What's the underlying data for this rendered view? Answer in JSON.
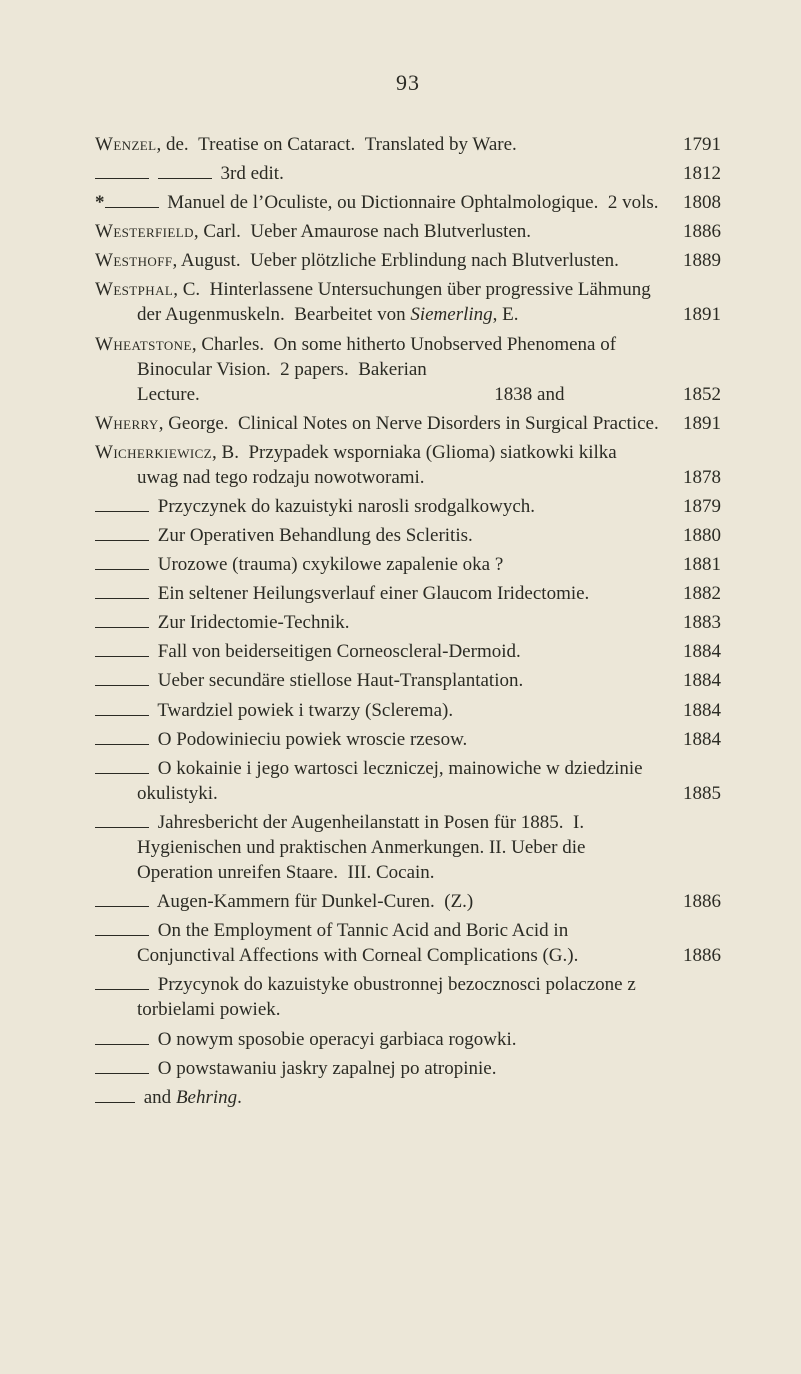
{
  "pageNumber": "93",
  "entries": [
    {
      "html": "<span class='sc'>Wenzel</span>, de.&nbsp;&nbsp;Treatise on Cataract.&nbsp;&nbsp;Translated by Ware.",
      "year": "1791"
    },
    {
      "html": "<span class='dash'></span> <span class='dash'></span> 3rd edit.",
      "year": "1812"
    },
    {
      "html": "<span class='ast'>*</span><span class='dash'></span> Manuel de l’Oculiste, ou Dictionnaire Ophtalmologique.&nbsp;&nbsp;2 vols.",
      "year": "1808"
    },
    {
      "html": "<span class='sc'>Westerfield</span>, Carl.&nbsp;&nbsp;Ueber Amaurose nach Blutverlusten.",
      "year": "1886"
    },
    {
      "html": "<span class='sc'>Westhoff</span>, August.&nbsp;&nbsp;Ueber plötzliche Erblindung nach Blutverlusten.",
      "year": "1889"
    },
    {
      "html": "<span class='sc'>Westphal</span>, C.&nbsp;&nbsp;Hinterlassene Untersuchungen über progressive Lähmung der Augenmuskeln.&nbsp;&nbsp;Bearbeitet von <i>Siemerling</i>, E.",
      "year": "1891"
    },
    {
      "html": "<span class='sc'>Wheatstone</span>, Charles.&nbsp;&nbsp;On some hitherto Unobserved Phenomena of Binocular Vision.&nbsp;&nbsp;2 papers.&nbsp;&nbsp;Bakerian Lecture.&nbsp;&nbsp;&nbsp;&nbsp;&nbsp;&nbsp;&nbsp;&nbsp;&nbsp;&nbsp;&nbsp;&nbsp;&nbsp;&nbsp;&nbsp;&nbsp;&nbsp;&nbsp;&nbsp;&nbsp;&nbsp;&nbsp;&nbsp;&nbsp;&nbsp;&nbsp;&nbsp;&nbsp;&nbsp;&nbsp;&nbsp;&nbsp;&nbsp;&nbsp;&nbsp;&nbsp;&nbsp;&nbsp;&nbsp;&nbsp;&nbsp;&nbsp;&nbsp;&nbsp;&nbsp;&nbsp;&nbsp;&nbsp;&nbsp;&nbsp;&nbsp;&nbsp;&nbsp;&nbsp;&nbsp;&nbsp;&nbsp;&nbsp;&nbsp;&nbsp;&nbsp;&nbsp;1838 and",
      "year": "1852"
    },
    {
      "html": "<span class='sc'>Wherry</span>, George.&nbsp;&nbsp;Clinical Notes on Nerve Disorders in Surgical Practice.",
      "year": "1891"
    },
    {
      "html": "<span class='sc'>Wicherkiewicz</span>, B.&nbsp;&nbsp;Przypadek wsporniaka (Glioma) siatkowki kilka uwag nad tego rodzaju nowotworami.",
      "year": "1878"
    },
    {
      "html": "<span class='dash'></span> Przyczynek do kazuistyki narosli srodgalkowych.",
      "year": "1879"
    },
    {
      "html": "<span class='dash'></span> Zur Operativen Behandlung des Scleritis.",
      "year": "1880"
    },
    {
      "html": "<span class='dash'></span> Urozowe (trauma) cxykilowe zapalenie oka ?",
      "year": "1881"
    },
    {
      "html": "<span class='dash'></span> Ein seltener Heilungsverlauf einer Glaucom Iridectomie.",
      "year": "1882"
    },
    {
      "html": "<span class='dash'></span> Zur Iridectomie-Technik.",
      "year": "1883"
    },
    {
      "html": "<span class='dash'></span> Fall von beiderseitigen Corneoscleral-Dermoid.",
      "year": "1884"
    },
    {
      "html": "<span class='dash'></span> Ueber secundäre stiellose Haut-Transplantation.",
      "year": "1884"
    },
    {
      "html": "<span class='dash'></span> Twardziel powiek i twarzy (Sclerema).",
      "year": "1884"
    },
    {
      "html": "<span class='dash'></span> O Podowinieciu powiek wroscie rzesow.",
      "year": "1884"
    },
    {
      "html": "<span class='dash'></span> O kokainie i jego wartosci leczniczej, mainowiche w dziedzinie okulistyki.",
      "year": "1885"
    },
    {
      "html": "<span class='dash'></span> Jahresbericht der Augenheilanstatt in Posen für 1885.&nbsp;&nbsp;I. Hygienischen und praktischen Anmerkungen. II. Ueber die Operation unreifen Staare.&nbsp;&nbsp;III. Cocain.",
      "year": ""
    },
    {
      "html": "<span class='dash'></span> Augen-Kammern für Dunkel-Curen.&nbsp;&nbsp;(Z.)",
      "year": "1886"
    },
    {
      "html": "<span class='dash'></span> On the Employment of Tannic Acid and Boric Acid in Conjunctival Affections with Corneal Complications (G.).",
      "year": "1886"
    },
    {
      "html": "<span class='dash'></span> Przycynok do kazuistyke obustronnej bezocznosci polaczone z torbielami powiek.",
      "year": ""
    },
    {
      "html": "<span class='dash'></span> O nowym sposobie operacyi garbiaca rogowki.",
      "year": ""
    },
    {
      "html": "<span class='dash'></span> O powstawaniu jaskry zapalnej po atropinie.",
      "year": ""
    },
    {
      "html": "<span class='dash short'></span> and <i>Behring</i>.",
      "year": ""
    }
  ]
}
